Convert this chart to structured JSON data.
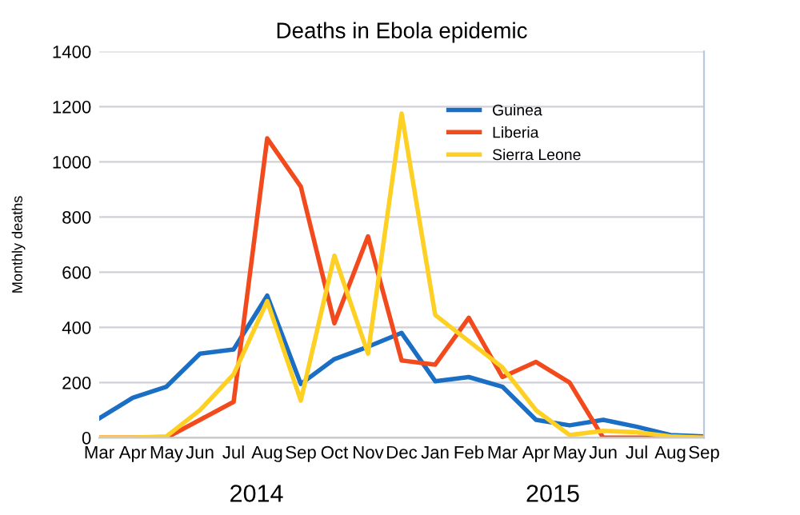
{
  "chart_data": {
    "type": "line",
    "title": "Deaths in Ebola epidemic",
    "ylabel": "Monthly deaths",
    "categories": [
      "Mar",
      "Apr",
      "May",
      "Jun",
      "Jul",
      "Aug",
      "Sep",
      "Oct",
      "Nov",
      "Dec",
      "Jan",
      "Feb",
      "Mar",
      "Apr",
      "May",
      "Jun",
      "Jul",
      "Aug",
      "Sep"
    ],
    "series": [
      {
        "name": "Guinea",
        "color": "#1a6fc4",
        "values": [
          70,
          145,
          185,
          305,
          320,
          515,
          195,
          285,
          330,
          380,
          205,
          220,
          185,
          65,
          45,
          65,
          40,
          10,
          5
        ]
      },
      {
        "name": "Liberia",
        "color": "#f24a1d",
        "values": [
          0,
          0,
          0,
          65,
          130,
          1085,
          910,
          415,
          730,
          280,
          265,
          435,
          220,
          275,
          200,
          0,
          0,
          0,
          0
        ]
      },
      {
        "name": "Sierra Leone",
        "color": "#fdd023",
        "values": [
          0,
          0,
          5,
          100,
          230,
          495,
          135,
          660,
          305,
          1175,
          445,
          350,
          255,
          100,
          10,
          25,
          20,
          5,
          0
        ]
      }
    ],
    "annotations": [
      "2014",
      "2015"
    ],
    "ylim": [
      0,
      1400
    ],
    "yticks": [
      0,
      200,
      400,
      600,
      800,
      1000,
      1200,
      1400
    ],
    "grid": "y",
    "legend": "top right",
    "marker": "none",
    "line_style": "solid"
  }
}
